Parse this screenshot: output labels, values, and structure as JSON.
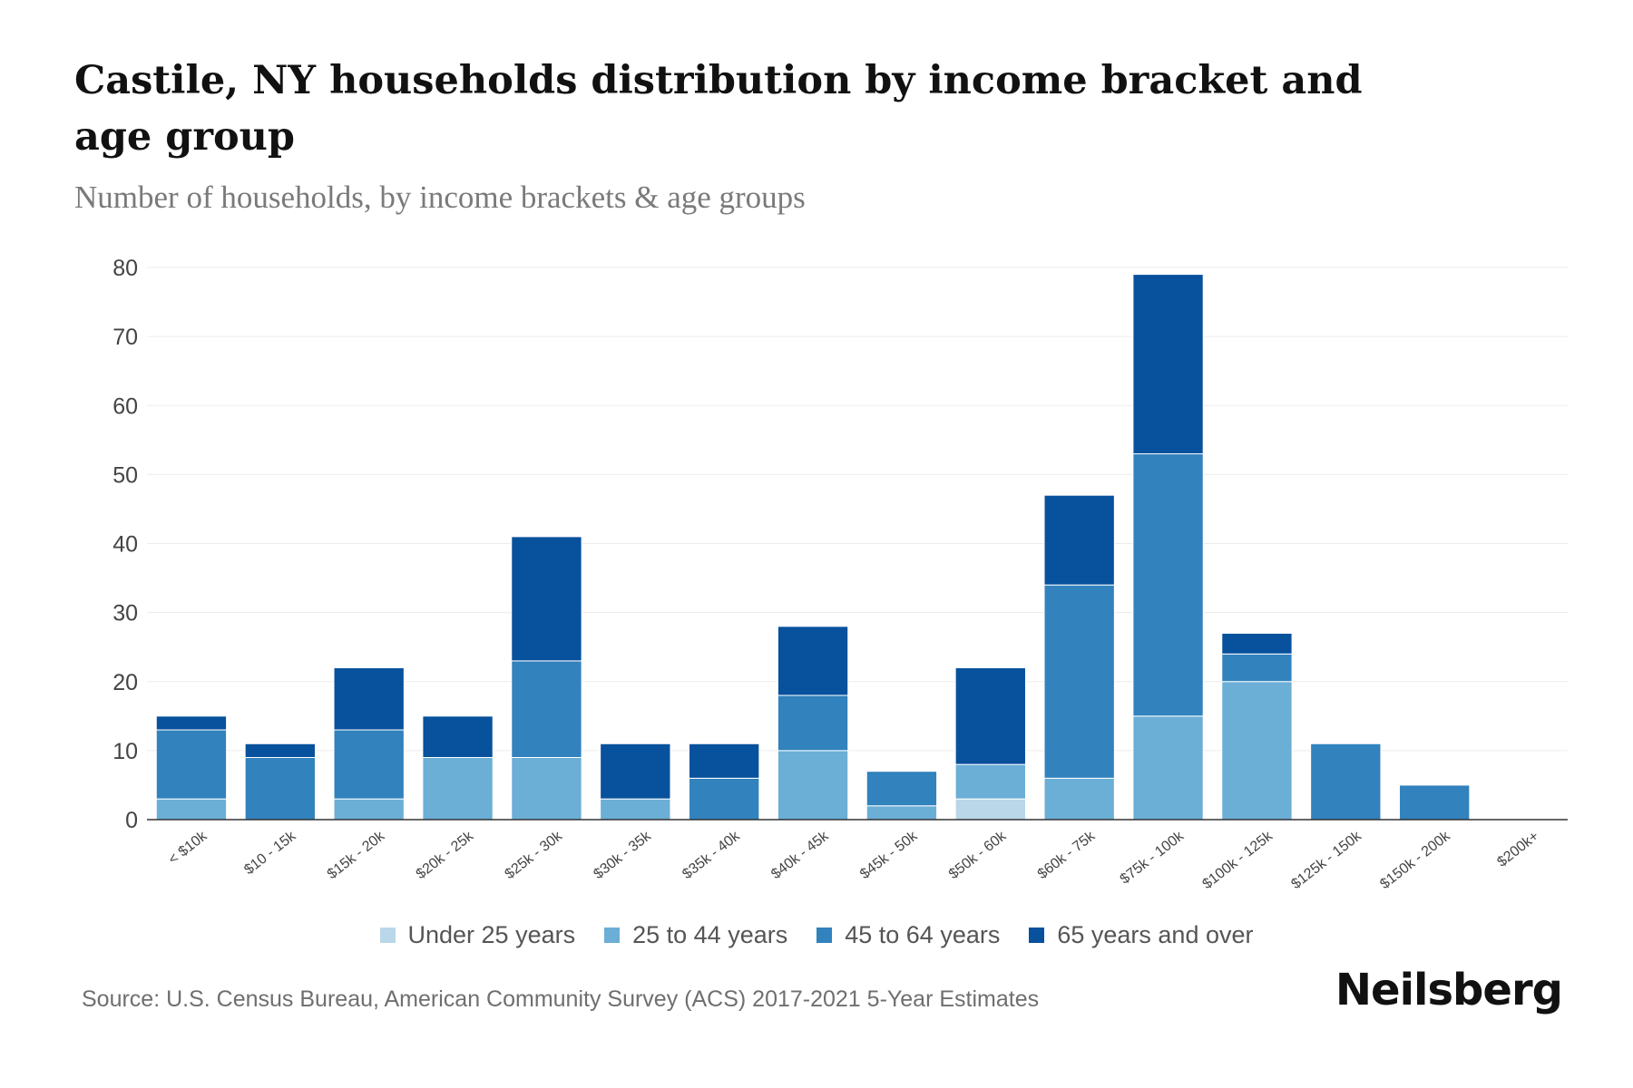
{
  "title": "Castile, NY households distribution by income bracket and age group",
  "subtitle": "Number of households, by income brackets & age groups",
  "source": "Source: U.S. Census Bureau, American Community Survey (ACS) 2017-2021 5-Year Estimates",
  "brand": "Neilsberg",
  "chart_data": {
    "type": "bar",
    "stacked": true,
    "title": "Castile, NY households distribution by income bracket and age group",
    "subtitle": "Number of households, by income brackets & age groups",
    "xlabel": "",
    "ylabel": "",
    "ylim": [
      0,
      80
    ],
    "yticks": [
      0,
      10,
      20,
      30,
      40,
      50,
      60,
      70,
      80
    ],
    "grid": true,
    "legend_position": "bottom",
    "categories": [
      "< $10k",
      "$10 - 15k",
      "$15k - 20k",
      "$20k - 25k",
      "$25k - 30k",
      "$30k - 35k",
      "$35k - 40k",
      "$40k - 45k",
      "$45k - 50k",
      "$50k - 60k",
      "$60k - 75k",
      "$75k - 100k",
      "$100k - 125k",
      "$125k - 150k",
      "$150k - 200k",
      "$200k+"
    ],
    "series": [
      {
        "name": "Under 25 years",
        "color": "#b9d7e8",
        "values": [
          0,
          0,
          0,
          0,
          0,
          0,
          0,
          0,
          0,
          3,
          0,
          0,
          0,
          0,
          0,
          0
        ]
      },
      {
        "name": "25 to 44 years",
        "color": "#6baed6",
        "values": [
          3,
          0,
          3,
          9,
          9,
          3,
          0,
          10,
          2,
          5,
          6,
          15,
          20,
          0,
          0,
          0
        ]
      },
      {
        "name": "45 to 64 years",
        "color": "#3182bd",
        "values": [
          10,
          9,
          10,
          0,
          14,
          0,
          6,
          8,
          5,
          0,
          28,
          38,
          4,
          11,
          5,
          0
        ]
      },
      {
        "name": "65 years and over",
        "color": "#08519c",
        "values": [
          2,
          2,
          9,
          6,
          18,
          8,
          5,
          10,
          0,
          14,
          13,
          26,
          3,
          0,
          0,
          0
        ]
      }
    ]
  }
}
